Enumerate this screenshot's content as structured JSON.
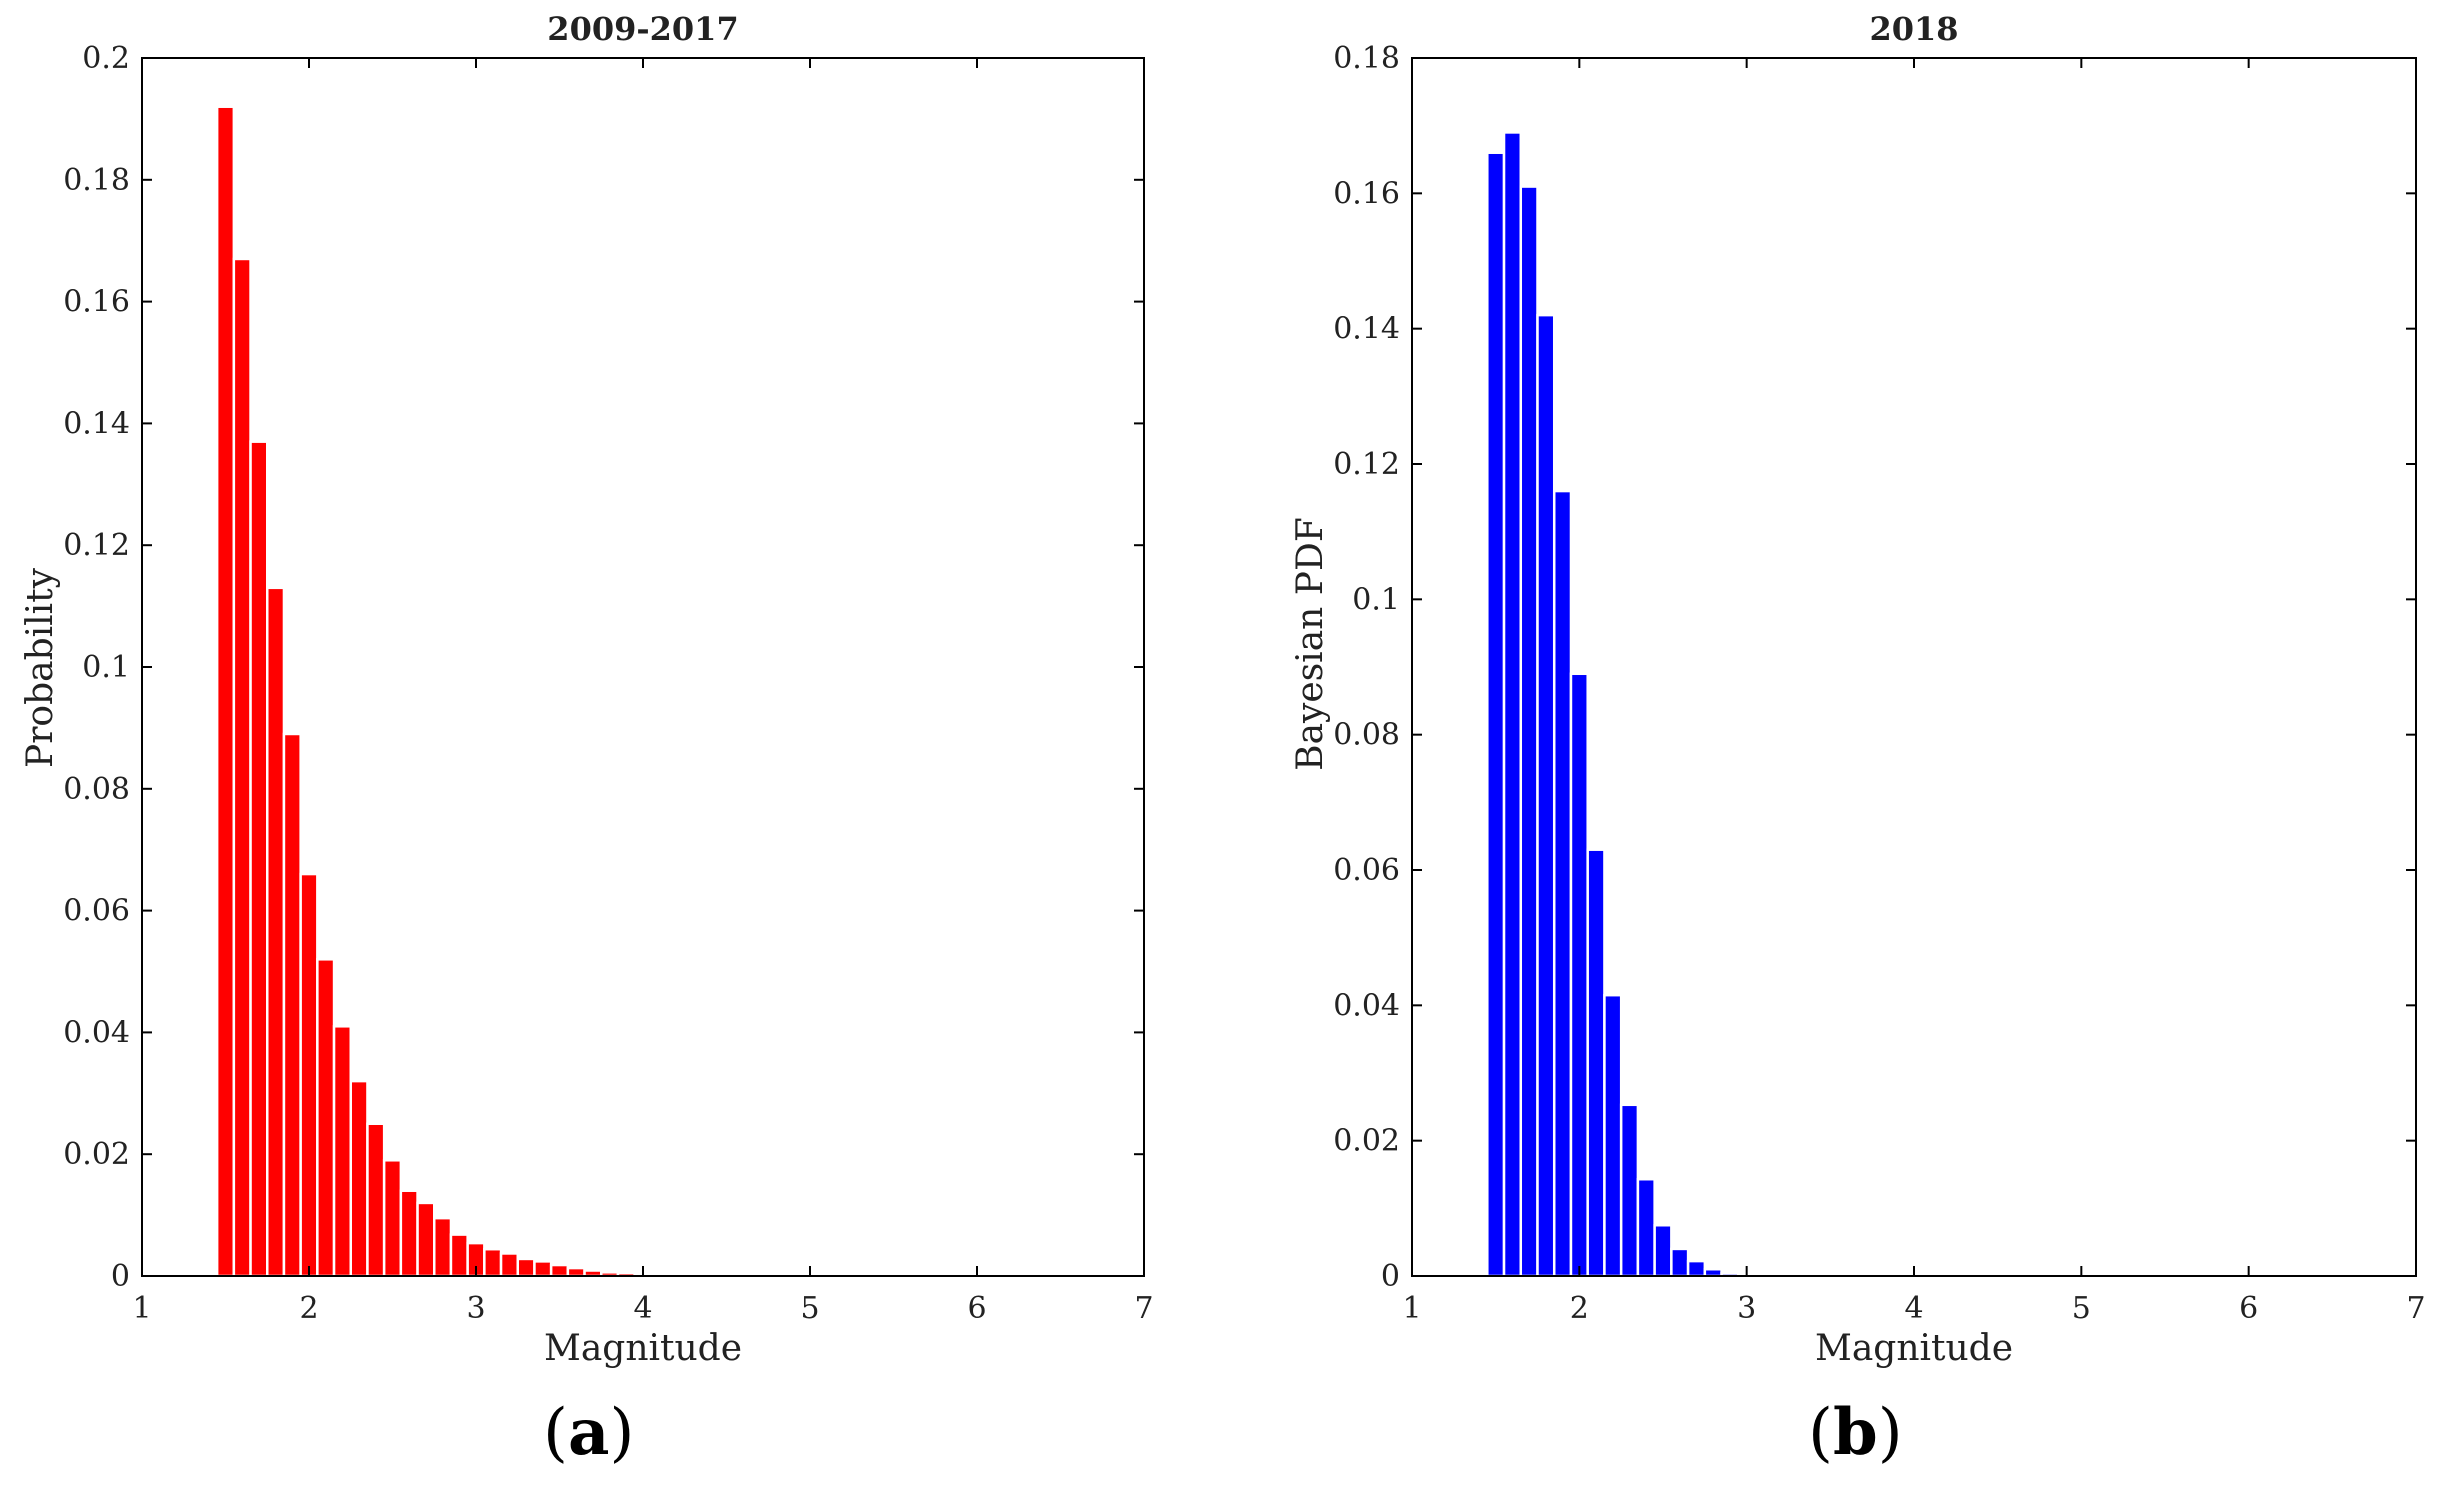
{
  "panels": [
    {
      "label": "a",
      "chart_data": {
        "type": "bar",
        "title": "2009-2017",
        "xlabel": "Magnitude",
        "ylabel": "Probability",
        "xlim": [
          1,
          7
        ],
        "ylim": [
          0,
          0.2
        ],
        "xticks": [
          "1",
          "2",
          "3",
          "4",
          "5",
          "6",
          "7"
        ],
        "yticks": [
          "0",
          "0.02",
          "0.04",
          "0.06",
          "0.08",
          "0.1",
          "0.12",
          "0.14",
          "0.16",
          "0.18",
          "0.2"
        ],
        "bin_width": 0.1,
        "bar_color": "#ff0000",
        "x": [
          1.5,
          1.6,
          1.7,
          1.8,
          1.9,
          2.0,
          2.1,
          2.2,
          2.3,
          2.4,
          2.5,
          2.6,
          2.7,
          2.8,
          2.9,
          3.0,
          3.1,
          3.2,
          3.3,
          3.4,
          3.5,
          3.6,
          3.7,
          3.8,
          3.9,
          4.0,
          4.1,
          4.2,
          4.3,
          4.4,
          4.5,
          4.6,
          4.7,
          4.8,
          4.9,
          5.0,
          5.1,
          5.2,
          5.3,
          5.4,
          5.5,
          5.6,
          5.7,
          5.8,
          5.9,
          6.0,
          6.1,
          6.2,
          6.3,
          6.4,
          6.5
        ],
        "values": [
          0.192,
          0.167,
          0.137,
          0.113,
          0.089,
          0.066,
          0.052,
          0.041,
          0.032,
          0.025,
          0.019,
          0.014,
          0.012,
          0.0095,
          0.0068,
          0.0054,
          0.0044,
          0.0037,
          0.0028,
          0.0024,
          0.0018,
          0.0013,
          0.0009,
          0.0006,
          0.0005,
          0.0004,
          0.0003,
          0.0002,
          0.0002,
          0.0001,
          0.0001,
          0.0001,
          0.0001,
          0.0001,
          0.0001,
          0.0001,
          0.0001,
          0.0001,
          0.0001,
          0.0001,
          0.0001,
          0.0001,
          0.0001,
          0.0001,
          0.0001,
          0.0001,
          0.0001,
          0.0001,
          0.0001,
          0.0001,
          0.0001
        ]
      }
    },
    {
      "label": "b",
      "chart_data": {
        "type": "bar",
        "title": "2018",
        "xlabel": "Magnitude",
        "ylabel": "Bayesian PDF",
        "xlim": [
          1,
          7
        ],
        "ylim": [
          0,
          0.18
        ],
        "xticks": [
          "1",
          "2",
          "3",
          "4",
          "5",
          "6",
          "7"
        ],
        "yticks": [
          "0",
          "0.02",
          "0.04",
          "0.06",
          "0.08",
          "0.1",
          "0.12",
          "0.14",
          "0.16",
          "0.18"
        ],
        "bin_width": 0.1,
        "bar_color": "#0000ff",
        "x": [
          1.5,
          1.6,
          1.7,
          1.8,
          1.9,
          2.0,
          2.1,
          2.2,
          2.3,
          2.4,
          2.5,
          2.6,
          2.7,
          2.8,
          2.9,
          3.0,
          3.1,
          3.2,
          3.3,
          3.4,
          3.5,
          3.6,
          3.7,
          3.8,
          3.9,
          4.0,
          4.1,
          4.2,
          4.3,
          4.4,
          4.5,
          4.6,
          4.7,
          4.8,
          4.9,
          5.0,
          5.1,
          5.2,
          5.3,
          5.4,
          5.5,
          5.6,
          5.7,
          5.8,
          5.9,
          6.0,
          6.1,
          6.2,
          6.3,
          6.4,
          6.5
        ],
        "values": [
          0.166,
          0.169,
          0.161,
          0.142,
          0.116,
          0.089,
          0.063,
          0.0415,
          0.0253,
          0.0143,
          0.0075,
          0.004,
          0.0022,
          0.001,
          0.0004,
          0.0002,
          0.0001,
          0.0001,
          0.0001,
          0.0001,
          0.0001,
          0.0001,
          0.0001,
          0.0001,
          0.0001,
          0.0001,
          0.0001,
          0.0001,
          0.0001,
          0.0001,
          0.0001,
          0.0001,
          0.0001,
          0.0001,
          0.0001,
          0.0001,
          0.0001,
          0.0001,
          0.0001,
          0.0001,
          0.0001,
          0.0001,
          0.0001,
          0.0001,
          0.0001,
          0.0001,
          0.0001,
          0.0001,
          0.0001,
          0.0001,
          0.0001
        ]
      }
    }
  ]
}
